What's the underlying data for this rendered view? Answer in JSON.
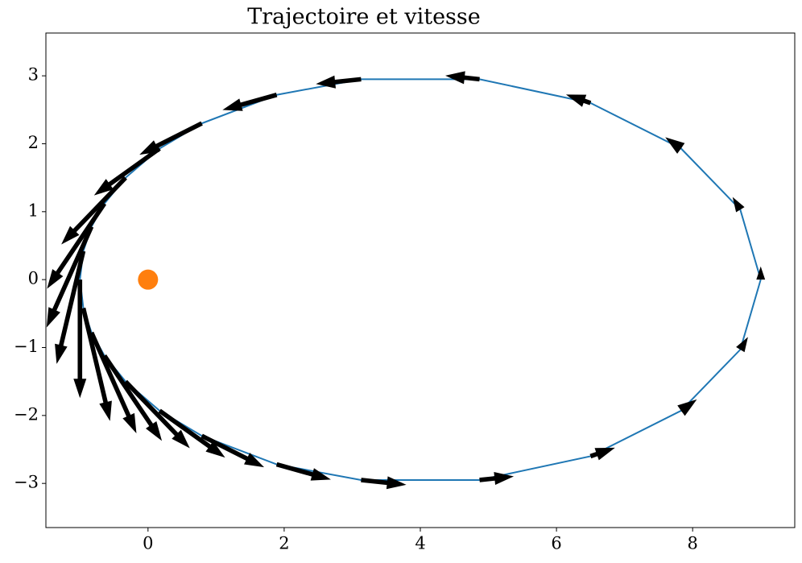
{
  "chart_data": {
    "type": "composite",
    "title": "Trajectoire et vitesse",
    "xlim": [
      -1.5,
      9.5
    ],
    "ylim": [
      -3.65,
      3.63
    ],
    "xticks": [
      0,
      2,
      4,
      6,
      8
    ],
    "yticks": [
      {
        "value": -3,
        "label": "−3"
      },
      {
        "value": -2,
        "label": "−2"
      },
      {
        "value": -1,
        "label": "−1"
      },
      0,
      1,
      2,
      3
    ],
    "series": [
      {
        "type": "line",
        "color": "#1f77b4",
        "x": [
          9,
          8.7,
          7.83,
          6.5,
          4.87,
          3.13,
          1.89,
          0.79,
          0.17,
          -0.33,
          -0.64,
          -0.83,
          -0.95,
          -1,
          -0.95,
          -0.83,
          -0.64,
          -0.33,
          0.17,
          0.79,
          1.89,
          3.13,
          4.87,
          6.5,
          7.83,
          8.7,
          9
        ],
        "y": [
          0,
          1.03,
          1.93,
          2.6,
          2.95,
          2.95,
          2.72,
          2.3,
          1.93,
          1.5,
          1.12,
          0.78,
          0.42,
          0,
          -0.42,
          -0.78,
          -1.12,
          -1.5,
          -1.93,
          -2.3,
          -2.72,
          -2.95,
          -2.95,
          -2.6,
          -1.93,
          -1.03,
          0
        ]
      },
      {
        "type": "quiver",
        "color": "#000000",
        "x": [
          9,
          8.7,
          7.83,
          6.5,
          4.87,
          3.13,
          1.89,
          0.79,
          0.17,
          -0.33,
          -0.64,
          -0.83,
          -0.95,
          -1,
          -0.95,
          -0.83,
          -0.64,
          -0.33,
          0.17,
          0.79,
          1.89,
          3.13,
          4.87,
          6.5,
          7.83,
          8.7
        ],
        "y": [
          0,
          1.03,
          1.93,
          2.6,
          2.95,
          2.95,
          2.72,
          2.3,
          1.93,
          1.5,
          1.12,
          0.78,
          0.42,
          0,
          -0.42,
          -0.78,
          -1.12,
          -1.5,
          -1.93,
          -2.3,
          -2.72,
          -2.95,
          -2.95,
          -2.6,
          -1.93,
          -1.03
        ],
        "u": [
          0,
          -0.113,
          -0.232,
          -0.36,
          -0.503,
          -0.664,
          -0.796,
          -0.916,
          -0.963,
          -0.944,
          -0.844,
          -0.66,
          -0.392,
          0,
          0.392,
          0.66,
          0.844,
          0.944,
          0.963,
          0.916,
          0.796,
          0.664,
          0.503,
          0.36,
          0.232,
          0.113
        ],
        "v": [
          0.194,
          0.186,
          0.166,
          0.125,
          0.053,
          -0.07,
          -0.223,
          -0.462,
          -0.69,
          -0.982,
          -1.254,
          -1.483,
          -1.662,
          -1.744,
          -1.662,
          -1.483,
          -1.254,
          -0.982,
          -0.69,
          -0.462,
          -0.223,
          -0.07,
          0.053,
          0.125,
          0.166,
          0.186
        ]
      },
      {
        "type": "scatter",
        "color": "#ff7f0e",
        "x": [
          0
        ],
        "y": [
          0
        ]
      }
    ]
  }
}
